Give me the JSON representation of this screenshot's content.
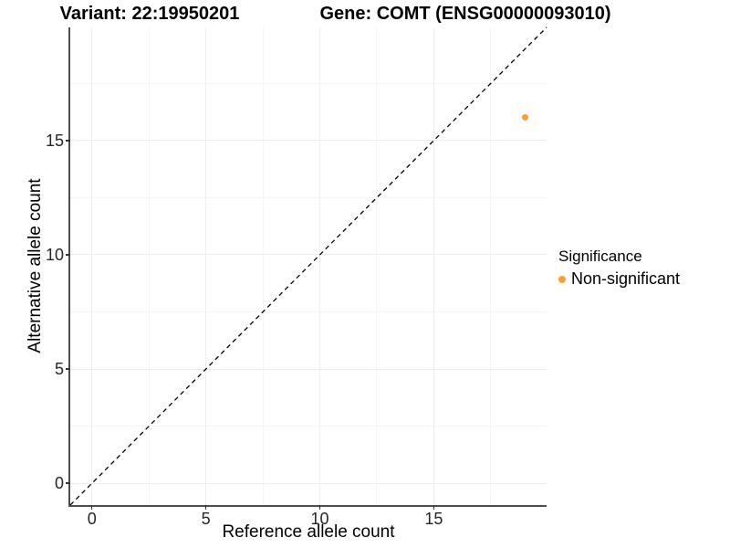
{
  "header": {
    "title_left": "Variant: 22:19950201",
    "title_right": "Gene: COMT (ENSG00000093010)"
  },
  "axes": {
    "x_label": "Reference allele count",
    "y_label": "Alternative allele count"
  },
  "legend": {
    "title": "Significance",
    "items": [
      {
        "label": "Non-significant",
        "color": "#F9A02E"
      }
    ]
  },
  "chart_data": {
    "type": "scatter",
    "titles": [
      "Variant: 22:19950201",
      "Gene: COMT (ENSG00000093010)"
    ],
    "xlabel": "Reference allele count",
    "ylabel": "Alternative allele count",
    "xlim": [
      -0.95,
      19.95
    ],
    "ylim": [
      -0.95,
      19.95
    ],
    "x_major_ticks": [
      0,
      5,
      10,
      15
    ],
    "y_major_ticks": [
      0,
      5,
      10,
      15
    ],
    "x_minor_gridlines": [
      2.5,
      7.5,
      12.5,
      17.5
    ],
    "y_minor_gridlines": [
      2.5,
      7.5,
      12.5,
      17.5
    ],
    "grid": "major+minor",
    "legend_position": "right",
    "legend_title": "Significance",
    "series": [
      {
        "name": "Non-significant",
        "color": "#F9A02E",
        "points": [
          {
            "x": 19,
            "y": 16
          }
        ]
      }
    ],
    "reference_line": {
      "type": "identity y=x",
      "style": "dashed",
      "color": "#000000",
      "from": [
        -0.95,
        -0.95
      ],
      "to": [
        19.95,
        19.95
      ]
    }
  },
  "colors": {
    "background": "#FFFFFF",
    "axis_line": "#4D4D4D",
    "tick": "#333333",
    "tick_label": "#262626",
    "grid_major": "#ECECEC",
    "grid_minor": "#F5F5F5",
    "dashed_line": "#000000"
  }
}
